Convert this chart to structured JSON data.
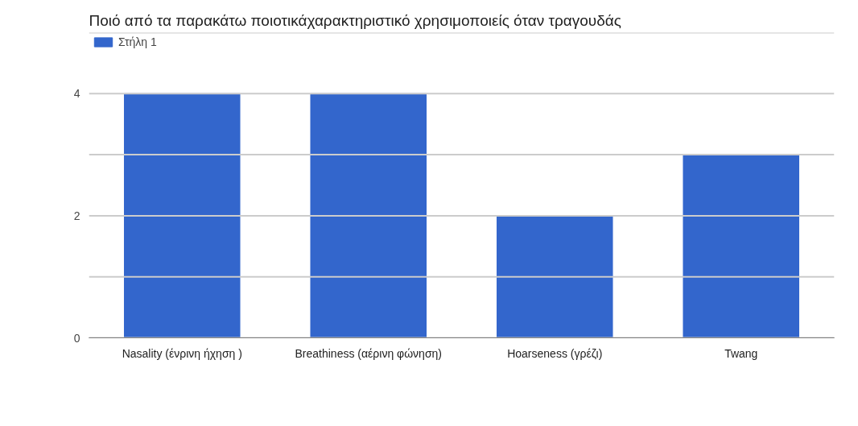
{
  "chart_data": {
    "type": "bar",
    "title": "Ποιό από τα παρακάτω ποιοτικάχαρακτηριστικό χρησιμοποιείς όταν τραγουδάς",
    "categories": [
      "Nasality (ένρινη ήχηση )",
      "Breathiness (αέρινη φώνηση)",
      "Hoarseness (γρέζι)",
      "Twang"
    ],
    "series": [
      {
        "name": "Στήλη 1",
        "color": "#3366cc",
        "values": [
          4,
          4,
          2,
          3
        ]
      }
    ],
    "ylim": [
      0,
      5
    ],
    "yticks": [
      0,
      {
        "value": 1,
        "label": null
      },
      2,
      {
        "value": 3,
        "label": null
      },
      4,
      {
        "value": 5,
        "label": null
      }
    ],
    "grid": "y",
    "legend": "top left"
  }
}
